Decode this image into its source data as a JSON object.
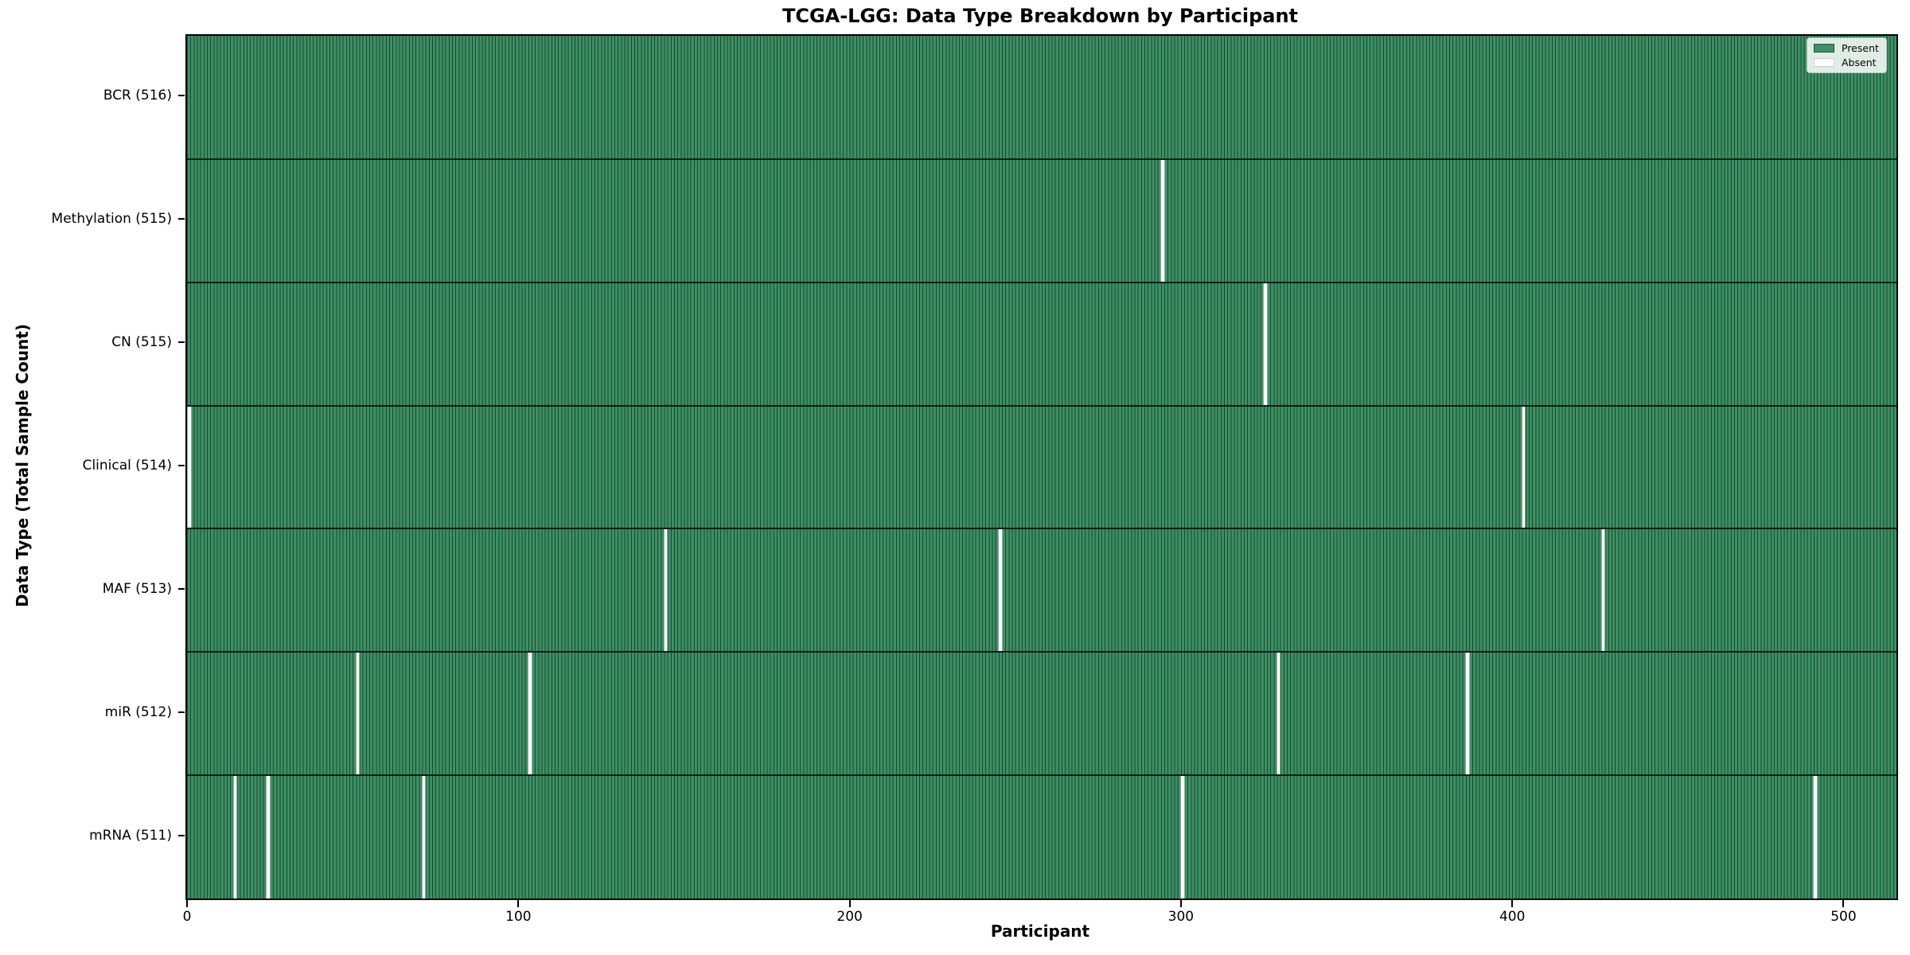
{
  "title": "TCGA-LGG: Data Type Breakdown by Participant",
  "chart_data": {
    "type": "heatmap",
    "title": "TCGA-LGG: Data Type Breakdown by Participant",
    "xlabel": "Participant",
    "ylabel": "Data Type (Total Sample Count)",
    "x_ticks": [
      0,
      100,
      200,
      300,
      400,
      500
    ],
    "x_range": [
      0,
      516
    ],
    "n_participants": 516,
    "grid": "off",
    "legend": {
      "position": "upper-right",
      "entries": [
        {
          "label": "Present",
          "color": "#3a9263"
        },
        {
          "label": "Absent",
          "color": "#ffffff"
        }
      ]
    },
    "rows": [
      {
        "label": "BCR (516)",
        "data_type": "BCR",
        "present_count": 516,
        "absent_participants": []
      },
      {
        "label": "Methylation (515)",
        "data_type": "Methylation",
        "present_count": 515,
        "absent_participants": [
          294
        ]
      },
      {
        "label": "CN (515)",
        "data_type": "CN",
        "present_count": 515,
        "absent_participants": [
          325
        ]
      },
      {
        "label": "Clinical (514)",
        "data_type": "Clinical",
        "present_count": 514,
        "absent_participants": [
          0,
          403
        ]
      },
      {
        "label": "MAF (513)",
        "data_type": "MAF",
        "present_count": 513,
        "absent_participants": [
          144,
          245,
          427
        ]
      },
      {
        "label": "miR (512)",
        "data_type": "miR",
        "present_count": 512,
        "absent_participants": [
          51,
          103,
          329,
          386
        ]
      },
      {
        "label": "mRNA (511)",
        "data_type": "mRNA",
        "present_count": 511,
        "absent_participants": [
          14,
          24,
          71,
          300,
          491
        ]
      }
    ],
    "colors": {
      "present": "#3a9263",
      "absent": "#ffffff",
      "cell_edge": "#1d4630",
      "row_divider": "#0c1f14",
      "axis": "#000000"
    }
  }
}
